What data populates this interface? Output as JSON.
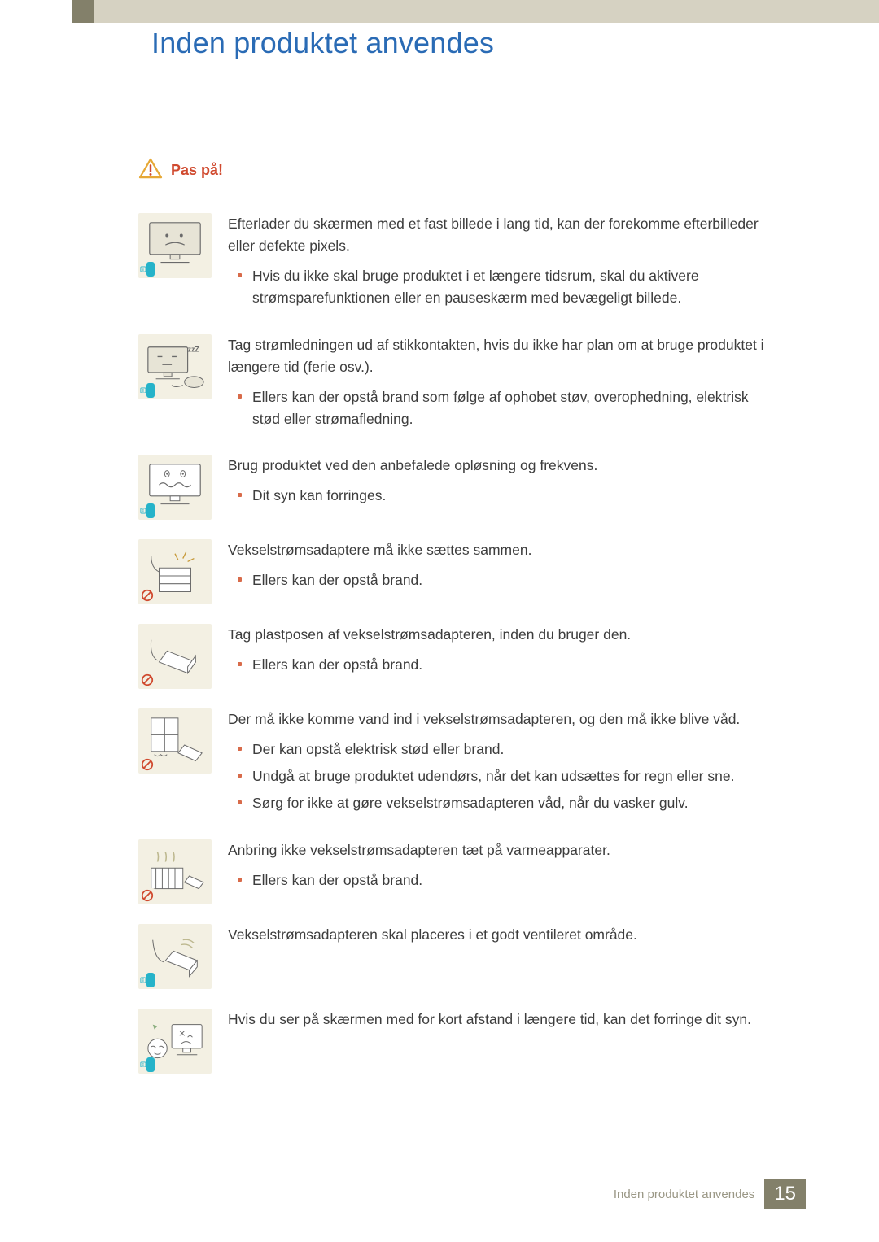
{
  "header": {
    "title": "Inden produktet anvendes"
  },
  "warning": {
    "label": "Pas på!"
  },
  "colors": {
    "accent_blue": "#2a6bb5",
    "accent_red": "#d04a2f",
    "bullet": "#d86b4a",
    "thumb_bg": "#f3f0e3",
    "strip_dark": "#83806a",
    "strip_light": "#d6d2c2",
    "info_badge": "#26b3c9",
    "no_badge": "#d04a2f",
    "footer_text": "#9a9785"
  },
  "items": [
    {
      "badge": "info",
      "lead": "Efterlader du skærmen med et fast billede i lang tid, kan der forekomme efterbilleder eller defekte pixels.",
      "bullets": [
        "Hvis du ikke skal bruge produktet i et længere tidsrum, skal du aktivere strømsparefunktionen eller en pauseskærm med bevægeligt billede."
      ]
    },
    {
      "badge": "info",
      "lead": "Tag strømledningen ud af stikkontakten, hvis du ikke har plan om at bruge produktet i længere tid (ferie osv.).",
      "bullets": [
        "Ellers kan der opstå brand som følge af ophobet støv, overophedning, elektrisk stød eller strømafledning."
      ]
    },
    {
      "badge": "info",
      "lead": "Brug produktet ved den anbefalede opløsning og frekvens.",
      "bullets": [
        "Dit syn kan forringes."
      ]
    },
    {
      "badge": "no",
      "lead": "Vekselstrømsadaptere må ikke sættes sammen.",
      "bullets": [
        "Ellers kan der opstå brand."
      ]
    },
    {
      "badge": "no",
      "lead": "Tag plastposen af vekselstrømsadapteren, inden du bruger den.",
      "bullets": [
        "Ellers kan der opstå brand."
      ]
    },
    {
      "badge": "no",
      "lead": "Der må ikke komme vand ind i vekselstrømsadapteren, og den må ikke blive våd.",
      "bullets": [
        "Der kan opstå elektrisk stød eller brand.",
        "Undgå at bruge produktet udendørs, når det kan udsættes for regn eller sne.",
        "Sørg for ikke at gøre vekselstrømsadapteren våd, når du vasker gulv."
      ]
    },
    {
      "badge": "no",
      "lead": "Anbring ikke vekselstrømsadapteren tæt på varmeapparater.",
      "bullets": [
        "Ellers kan der opstå brand."
      ]
    },
    {
      "badge": "info",
      "lead": "Vekselstrømsadapteren skal placeres i et godt ventileret område.",
      "bullets": []
    },
    {
      "badge": "info",
      "lead": "Hvis du ser på skærmen med for kort afstand i længere tid, kan det forringe dit syn.",
      "bullets": []
    }
  ],
  "footer": {
    "label": "Inden produktet anvendes",
    "page": "15"
  }
}
